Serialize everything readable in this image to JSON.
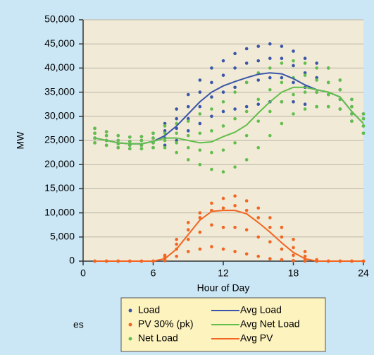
{
  "chart_data": {
    "type": "scatter",
    "xlabel": "Hour of Day",
    "ylabel": "MW",
    "annotation": "es",
    "xlim": [
      0,
      24
    ],
    "xticks": [
      0,
      6,
      12,
      18,
      24
    ],
    "ylim": [
      0,
      50000
    ],
    "yticks": [
      0,
      {
        "value": 5000,
        "label": "5,000"
      },
      {
        "value": 10000,
        "label": "10,000"
      },
      {
        "value": 15000,
        "label": "15,000"
      },
      {
        "value": 20000,
        "label": "20,000"
      },
      {
        "value": 25000,
        "label": "25,000"
      },
      {
        "value": 30000,
        "label": "30,000"
      },
      {
        "value": 35000,
        "label": "35,000"
      },
      {
        "value": 40000,
        "label": "40,000"
      },
      {
        "value": 45000,
        "label": "45,000"
      },
      {
        "value": 50000,
        "label": "50,000"
      }
    ],
    "grid": true,
    "legend": "bottom",
    "series": [
      {
        "name": "Load",
        "kind": "scatter",
        "color": "#3a56a8",
        "x": [
          1,
          1,
          1,
          1,
          2,
          2,
          2,
          2,
          3,
          3,
          3,
          3,
          4,
          4,
          4,
          4,
          5,
          5,
          5,
          5,
          6,
          6,
          6,
          6,
          7,
          7,
          7,
          7,
          8,
          8,
          8,
          8,
          9,
          9,
          9,
          9,
          10,
          10,
          10,
          10,
          11,
          11,
          11,
          11,
          12,
          12,
          12,
          12,
          13,
          13,
          13,
          13,
          14,
          14,
          14,
          14,
          15,
          15,
          15,
          15,
          16,
          16,
          16,
          16,
          17,
          17,
          17,
          17,
          18,
          18,
          18,
          18,
          19,
          19,
          19,
          19,
          20,
          20,
          20,
          20,
          21,
          21,
          21,
          21,
          22,
          22,
          22,
          22,
          23,
          23,
          23,
          23,
          24,
          24,
          24,
          24
        ],
        "values": [
          24500,
          25500,
          26500,
          27500,
          24000,
          25000,
          26000,
          26800,
          23500,
          24300,
          25000,
          26000,
          23300,
          24000,
          24800,
          25700,
          23300,
          24000,
          25000,
          25800,
          23500,
          24500,
          25500,
          26500,
          24000,
          25500,
          27000,
          28500,
          25000,
          27500,
          29500,
          31500,
          27000,
          29500,
          32000,
          34500,
          28500,
          32000,
          35000,
          37500,
          30000,
          34000,
          37000,
          40000,
          31000,
          35000,
          38500,
          41500,
          31500,
          36000,
          40000,
          43000,
          32000,
          37000,
          41000,
          44000,
          32500,
          37500,
          41500,
          44500,
          33000,
          38000,
          42000,
          45000,
          33000,
          38000,
          42000,
          44500,
          33000,
          37000,
          40500,
          43500,
          32500,
          36000,
          39000,
          42000,
          32000,
          35000,
          38000,
          41000,
          32000,
          34500,
          37000,
          40000,
          31500,
          33500,
          35500,
          37500,
          29000,
          30500,
          32000,
          33500,
          26500,
          28000,
          29500,
          30500
        ]
      },
      {
        "name": "PV 30% (pk)",
        "kind": "scatter",
        "color": "#f26522",
        "x": [
          1,
          1,
          1,
          1,
          2,
          2,
          2,
          2,
          3,
          3,
          3,
          3,
          4,
          4,
          4,
          4,
          5,
          5,
          5,
          5,
          6,
          6,
          6,
          6,
          7,
          7,
          7,
          7,
          8,
          8,
          8,
          8,
          9,
          9,
          9,
          9,
          10,
          10,
          10,
          10,
          11,
          11,
          11,
          11,
          12,
          12,
          12,
          12,
          13,
          13,
          13,
          13,
          14,
          14,
          14,
          14,
          15,
          15,
          15,
          15,
          16,
          16,
          16,
          16,
          17,
          17,
          17,
          17,
          18,
          18,
          18,
          18,
          19,
          19,
          19,
          19,
          20,
          20,
          20,
          20,
          21,
          21,
          21,
          21,
          22,
          22,
          22,
          22,
          23,
          23,
          23,
          23,
          24,
          24,
          24,
          24
        ],
        "values": [
          0,
          0,
          0,
          0,
          0,
          0,
          0,
          0,
          0,
          0,
          0,
          0,
          0,
          0,
          0,
          0,
          0,
          0,
          0,
          0,
          0,
          0,
          0,
          0,
          100,
          400,
          800,
          1200,
          1000,
          2500,
          3500,
          4500,
          2000,
          4500,
          6500,
          8000,
          2500,
          6000,
          9000,
          10000,
          3000,
          7500,
          10500,
          12000,
          2500,
          7000,
          11000,
          13000,
          2000,
          7000,
          11500,
          13500,
          1500,
          6500,
          10500,
          12500,
          1000,
          5000,
          9000,
          11000,
          500,
          4000,
          7000,
          9000,
          300,
          2500,
          5000,
          7000,
          100,
          1200,
          2800,
          4500,
          0,
          300,
          1000,
          2000,
          0,
          0,
          100,
          300,
          0,
          0,
          0,
          0,
          0,
          0,
          0,
          0,
          0,
          0,
          0,
          0,
          0,
          0,
          0,
          0
        ]
      },
      {
        "name": "Net Load",
        "kind": "scatter",
        "color": "#62bf4c",
        "x": [
          1,
          1,
          1,
          1,
          2,
          2,
          2,
          2,
          3,
          3,
          3,
          3,
          4,
          4,
          4,
          4,
          5,
          5,
          5,
          5,
          6,
          6,
          6,
          6,
          7,
          7,
          7,
          7,
          8,
          8,
          8,
          8,
          9,
          9,
          9,
          9,
          10,
          10,
          10,
          10,
          11,
          11,
          11,
          11,
          12,
          12,
          12,
          12,
          13,
          13,
          13,
          13,
          14,
          14,
          14,
          14,
          15,
          15,
          15,
          15,
          16,
          16,
          16,
          16,
          17,
          17,
          17,
          17,
          18,
          18,
          18,
          18,
          19,
          19,
          19,
          19,
          20,
          20,
          20,
          20,
          21,
          21,
          21,
          21,
          22,
          22,
          22,
          22,
          23,
          23,
          23,
          23,
          24,
          24,
          24,
          24
        ],
        "values": [
          24500,
          25500,
          26500,
          27500,
          24000,
          25000,
          26000,
          26800,
          23500,
          24300,
          25000,
          26000,
          23300,
          24000,
          24800,
          25700,
          23300,
          24000,
          25000,
          25800,
          23500,
          24500,
          25500,
          26500,
          23500,
          25000,
          26500,
          28000,
          22500,
          24500,
          26500,
          28500,
          21000,
          23500,
          26000,
          29000,
          20000,
          23000,
          26500,
          30500,
          19000,
          22500,
          27000,
          31500,
          18500,
          23000,
          28000,
          33000,
          19500,
          24500,
          29500,
          35000,
          21000,
          26000,
          31000,
          37000,
          23500,
          29000,
          33500,
          39000,
          26000,
          31000,
          35500,
          40000,
          28500,
          33000,
          37000,
          41000,
          30500,
          34500,
          38000,
          41500,
          31500,
          35000,
          38500,
          41000,
          32000,
          35000,
          37500,
          40000,
          32000,
          34500,
          37000,
          40000,
          31500,
          33500,
          35500,
          37500,
          29000,
          30500,
          32000,
          33500,
          26500,
          28000,
          29500,
          30500
        ]
      },
      {
        "name": "Avg Load",
        "kind": "line",
        "color": "#3a56a8",
        "x": [
          1,
          2,
          3,
          4,
          5,
          6,
          7,
          8,
          9,
          10,
          11,
          12,
          13,
          14,
          15,
          16,
          17,
          18,
          19,
          20,
          21,
          22,
          23,
          24
        ],
        "values": [
          25500,
          25000,
          24500,
          24300,
          24300,
          24800,
          26000,
          28000,
          30500,
          33000,
          35000,
          36300,
          37200,
          38000,
          38700,
          39000,
          38800,
          37800,
          36500,
          35500,
          35000,
          34000,
          31000,
          28500
        ]
      },
      {
        "name": "Avg Net Load",
        "kind": "line",
        "color": "#62bf4c",
        "x": [
          1,
          2,
          3,
          4,
          5,
          6,
          7,
          8,
          9,
          10,
          11,
          12,
          13,
          14,
          15,
          16,
          17,
          18,
          19,
          20,
          21,
          22,
          23,
          24
        ],
        "values": [
          25500,
          25000,
          24500,
          24300,
          24300,
          24800,
          25500,
          25500,
          25000,
          24500,
          24700,
          25800,
          26700,
          28200,
          30700,
          33000,
          35000,
          36000,
          36000,
          35500,
          35000,
          34000,
          31000,
          28500
        ]
      },
      {
        "name": "Avg PV",
        "kind": "line",
        "color": "#f26522",
        "x": [
          1,
          2,
          3,
          4,
          5,
          6,
          7,
          8,
          9,
          10,
          11,
          12,
          13,
          14,
          15,
          16,
          17,
          18,
          19,
          20,
          21,
          22,
          23,
          24
        ],
        "values": [
          0,
          0,
          0,
          0,
          0,
          0,
          500,
          2500,
          5500,
          8500,
          10300,
          10500,
          10500,
          9800,
          8000,
          6000,
          3800,
          1800,
          500,
          0,
          0,
          0,
          0,
          0
        ]
      }
    ]
  }
}
